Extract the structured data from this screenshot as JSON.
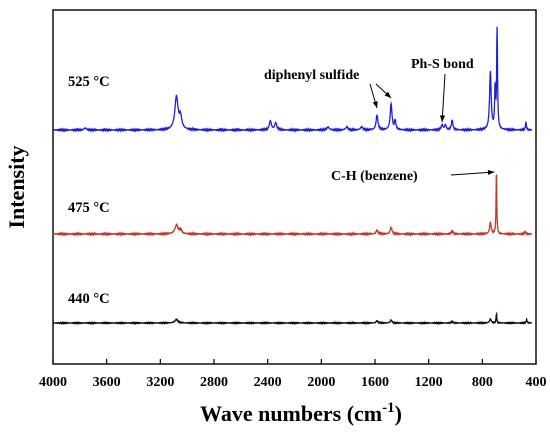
{
  "chart_data": {
    "type": "line",
    "xlabel_main": "Wave numbers (cm",
    "xlabel_sup": "-1",
    "xlabel_close": ")",
    "ylabel": "Intensity",
    "xlim": [
      4000,
      400
    ],
    "x_reversed": true,
    "x_ticks": [
      4000,
      3600,
      3200,
      2800,
      2400,
      2000,
      1600,
      1200,
      800,
      400
    ],
    "y_ticks_shown": false,
    "grid": false,
    "legend": "none",
    "series": [
      {
        "name": "525 °C",
        "color": "#1f1fd6",
        "baseline": 0.0,
        "peaks": [
          {
            "x": 3760,
            "h": 0.02,
            "w": 10
          },
          {
            "x": 3080,
            "h": 0.33,
            "w": 14
          },
          {
            "x": 3050,
            "h": 0.12,
            "w": 12
          },
          {
            "x": 2380,
            "h": 0.09,
            "w": 9
          },
          {
            "x": 2340,
            "h": 0.07,
            "w": 9
          },
          {
            "x": 1950,
            "h": 0.03,
            "w": 10
          },
          {
            "x": 1810,
            "h": 0.03,
            "w": 10
          },
          {
            "x": 1700,
            "h": 0.03,
            "w": 10
          },
          {
            "x": 1585,
            "h": 0.15,
            "w": 8
          },
          {
            "x": 1480,
            "h": 0.26,
            "w": 8
          },
          {
            "x": 1450,
            "h": 0.09,
            "w": 7
          },
          {
            "x": 1100,
            "h": 0.05,
            "w": 8
          },
          {
            "x": 1075,
            "h": 0.05,
            "w": 7
          },
          {
            "x": 1025,
            "h": 0.1,
            "w": 7
          },
          {
            "x": 740,
            "h": 0.58,
            "w": 7
          },
          {
            "x": 690,
            "h": 1.0,
            "w": 4
          },
          {
            "x": 705,
            "h": 0.4,
            "w": 4
          },
          {
            "x": 475,
            "h": 0.08,
            "w": 4
          }
        ]
      },
      {
        "name": "475 °C",
        "color": "#c0392b",
        "baseline": 0.0,
        "peaks": [
          {
            "x": 3080,
            "h": 0.09,
            "w": 14
          },
          {
            "x": 3050,
            "h": 0.04,
            "w": 12
          },
          {
            "x": 1585,
            "h": 0.04,
            "w": 8
          },
          {
            "x": 1480,
            "h": 0.07,
            "w": 8
          },
          {
            "x": 1025,
            "h": 0.03,
            "w": 7
          },
          {
            "x": 740,
            "h": 0.12,
            "w": 7
          },
          {
            "x": 695,
            "h": 0.68,
            "w": 3
          },
          {
            "x": 480,
            "h": 0.03,
            "w": 4
          }
        ]
      },
      {
        "name": "440 °C",
        "color": "#111111",
        "baseline": 0.0,
        "peaks": [
          {
            "x": 3080,
            "h": 0.05,
            "w": 14
          },
          {
            "x": 1585,
            "h": 0.03,
            "w": 8
          },
          {
            "x": 1480,
            "h": 0.04,
            "w": 8
          },
          {
            "x": 1025,
            "h": 0.02,
            "w": 7
          },
          {
            "x": 740,
            "h": 0.06,
            "w": 7
          },
          {
            "x": 695,
            "h": 0.14,
            "w": 3
          },
          {
            "x": 470,
            "h": 0.05,
            "w": 4
          }
        ]
      }
    ],
    "annotations": [
      {
        "text": "diphenyl sulfide",
        "arrows_to": [
          1585,
          1480
        ],
        "series": "525 °C"
      },
      {
        "text": "Ph-S bond",
        "arrows_to": [
          1100
        ],
        "series": "525 °C"
      },
      {
        "text": "C-H (benzene)",
        "arrows_to": [
          695
        ],
        "series": "475 °C"
      }
    ]
  }
}
